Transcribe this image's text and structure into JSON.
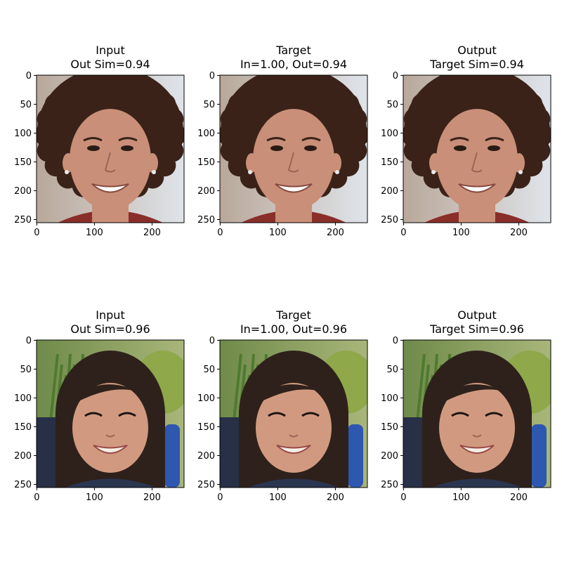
{
  "figure": {
    "rows": [
      {
        "subject": "curly-hair-man",
        "panels": [
          {
            "title_line1": "Input",
            "title_line2": "Out Sim=0.94"
          },
          {
            "title_line1": "Target",
            "title_line2": "In=1.00, Out=0.94"
          },
          {
            "title_line1": "Output",
            "title_line2": "Target Sim=0.94"
          }
        ],
        "colors": {
          "bg_left": "#b9a89a",
          "bg_right": "#dfe4ea",
          "hair": "#3a2219",
          "skin": "#c98f78",
          "shirt": "#8a2e2a"
        }
      },
      {
        "subject": "smiling-girl",
        "panels": [
          {
            "title_line1": "Input",
            "title_line2": "Out Sim=0.96"
          },
          {
            "title_line1": "Target",
            "title_line2": "In=1.00, Out=0.96"
          },
          {
            "title_line1": "Output",
            "title_line2": "Target Sim=0.96"
          }
        ],
        "colors": {
          "bg_left": "#6f8a4a",
          "bg_right": "#a9b67a",
          "hair": "#2e211b",
          "skin": "#d19a80",
          "shirt": "#2a3550"
        }
      }
    ],
    "axes": {
      "x_ticks": [
        "0",
        "100",
        "200"
      ],
      "y_ticks": [
        "0",
        "50",
        "100",
        "150",
        "200",
        "250"
      ]
    }
  }
}
